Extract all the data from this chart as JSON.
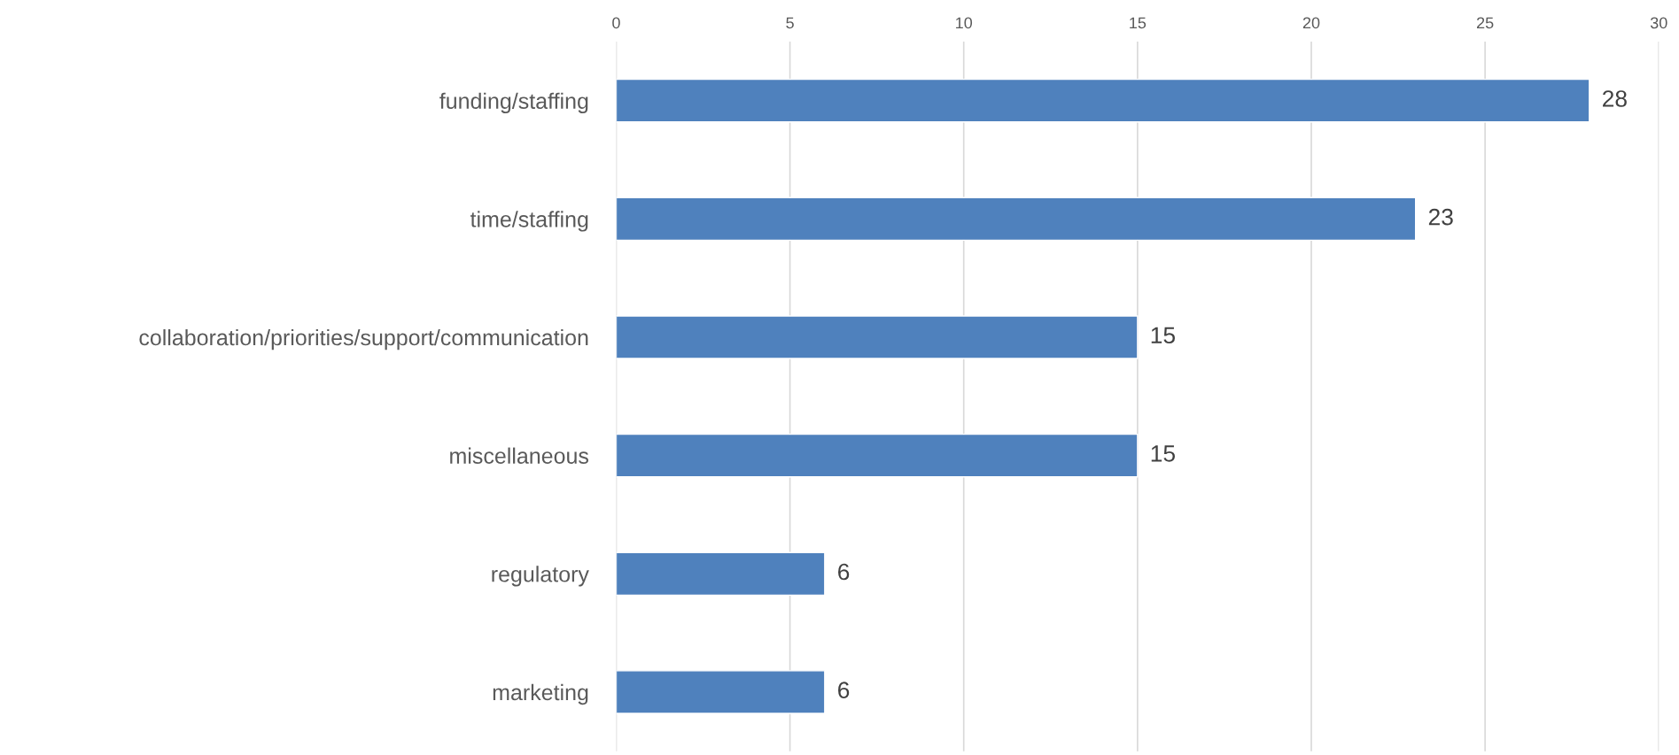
{
  "chart_data": {
    "type": "bar",
    "orientation": "horizontal",
    "categories": [
      "funding/staffing",
      "time/staffing",
      "collaboration/priorities/support/communication",
      "miscellaneous",
      "regulatory",
      "marketing"
    ],
    "values": [
      28,
      23,
      15,
      15,
      6,
      6
    ],
    "color": "#4f81bd",
    "xlim": [
      0,
      30
    ],
    "xticks": [
      0,
      5,
      10,
      15,
      20,
      25,
      30
    ],
    "grid": "x",
    "data_labels": true,
    "legend": false
  }
}
